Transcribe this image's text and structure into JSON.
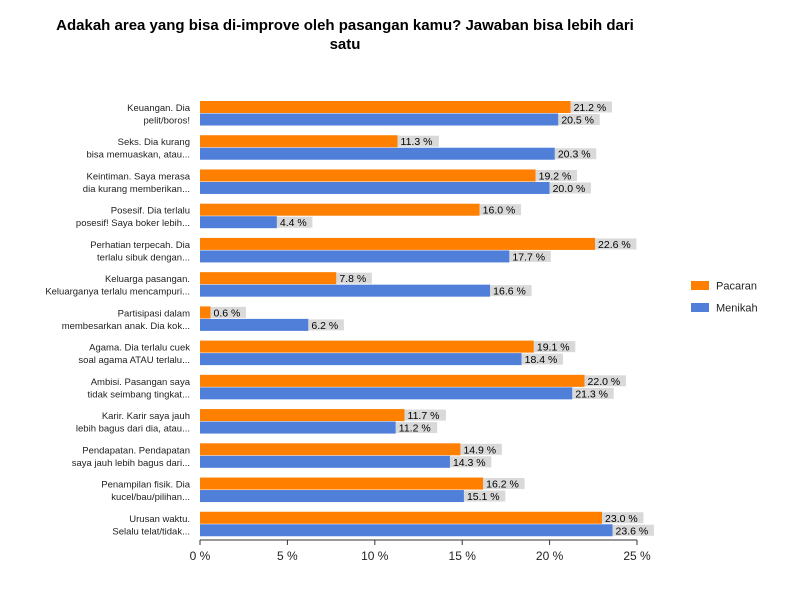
{
  "chart_data": {
    "type": "bar",
    "orientation": "horizontal",
    "title": "Adakah area yang bisa di-improve oleh pasangan kamu? Jawaban bisa lebih dari satu",
    "categories": [
      [
        "Keuangan. Dia",
        "pelit/boros!"
      ],
      [
        "Seks. Dia kurang",
        "bisa memuaskan, atau..."
      ],
      [
        "Keintiman. Saya merasa",
        "dia kurang memberikan..."
      ],
      [
        "Posesif. Dia terlalu",
        "posesif! Saya boker lebih..."
      ],
      [
        "Perhatian terpecah. Dia",
        "terlalu sibuk dengan..."
      ],
      [
        "Keluarga pasangan.",
        "Keluarganya terlalu mencampuri..."
      ],
      [
        "Partisipasi dalam",
        "membesarkan anak. Dia kok..."
      ],
      [
        "Agama. Dia terlalu cuek",
        "soal agama ATAU terlalu..."
      ],
      [
        "Ambisi. Pasangan saya",
        "tidak seimbang tingkat..."
      ],
      [
        "Karir. Karir saya jauh",
        "lebih bagus dari dia, atau..."
      ],
      [
        "Pendapatan. Pendapatan",
        "saya jauh lebih bagus dari..."
      ],
      [
        "Penampilan fisik. Dia",
        "kucel/bau/pilihan..."
      ],
      [
        "Urusan waktu.",
        "Selalu telat/tidak..."
      ]
    ],
    "series": [
      {
        "name": "Pacaran",
        "color": "#ff7f00",
        "values": [
          21.2,
          11.3,
          19.2,
          16.0,
          22.6,
          7.8,
          0.6,
          19.1,
          22.0,
          11.7,
          14.9,
          16.2,
          23.0
        ],
        "labels": [
          "21.2 %",
          "11.3 %",
          "19.2 %",
          "16.0 %",
          "22.6 %",
          "7.8 %",
          "0.6 %",
          "19.1 %",
          "22.0 %",
          "11.7 %",
          "14.9 %",
          "16.2 %",
          "23.0 %"
        ]
      },
      {
        "name": "Menikah",
        "color": "#4f7fd9",
        "values": [
          20.5,
          20.3,
          20.0,
          4.4,
          17.7,
          16.6,
          6.2,
          18.4,
          21.3,
          11.2,
          14.3,
          15.1,
          23.6
        ],
        "labels": [
          "20.5 %",
          "20.3 %",
          "20.0 %",
          "4.4 %",
          "17.7 %",
          "16.6 %",
          "6.2 %",
          "18.4 %",
          "21.3 %",
          "11.2 %",
          "14.3 %",
          "15.1 %",
          "23.6 %"
        ]
      }
    ],
    "xlim": [
      0,
      25
    ],
    "xticks": [
      0,
      5,
      10,
      15,
      20,
      25
    ],
    "xtick_labels": [
      "0 %",
      "5 %",
      "10 %",
      "15 %",
      "20 %",
      "25 %"
    ],
    "legend_position": "right",
    "grid": false
  }
}
